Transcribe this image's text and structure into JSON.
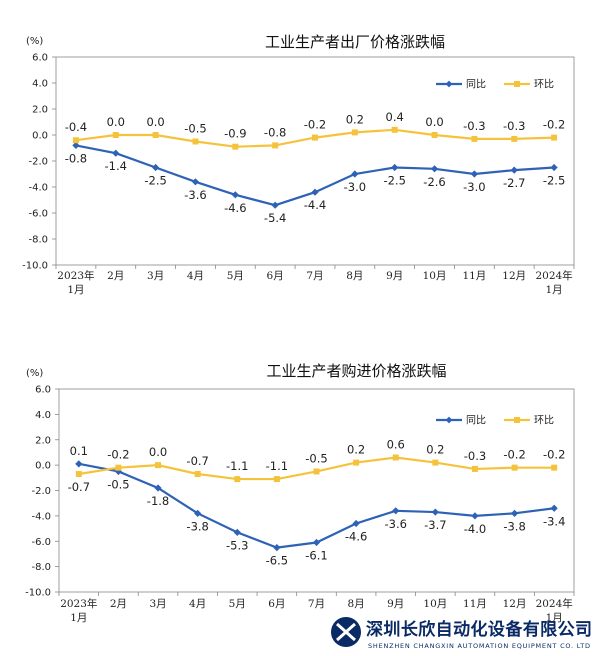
{
  "chart_data": [
    {
      "type": "line",
      "title": "工业生产者出厂价格涨跌幅",
      "unit_label": "(%)",
      "categories": [
        "2023年1月",
        "2月",
        "3月",
        "4月",
        "5月",
        "6月",
        "7月",
        "8月",
        "9月",
        "10月",
        "11月",
        "12月",
        "2024年1月"
      ],
      "category_lines": [
        [
          "2023年",
          "1月"
        ],
        [
          "2月"
        ],
        [
          "3月"
        ],
        [
          "4月"
        ],
        [
          "5月"
        ],
        [
          "6月"
        ],
        [
          "7月"
        ],
        [
          "8月"
        ],
        [
          "9月"
        ],
        [
          "10月"
        ],
        [
          "11月"
        ],
        [
          "12月"
        ],
        [
          "2024年",
          "1月"
        ]
      ],
      "series": [
        {
          "name": "同比",
          "color": "#2e62b6",
          "marker": "diamond",
          "values": [
            -0.8,
            -1.4,
            -2.5,
            -3.6,
            -4.6,
            -5.4,
            -4.4,
            -3.0,
            -2.5,
            -2.6,
            -3.0,
            -2.7,
            -2.5
          ]
        },
        {
          "name": "环比",
          "color": "#f5c33b",
          "marker": "square",
          "values": [
            -0.4,
            0.0,
            0.0,
            -0.5,
            -0.9,
            -0.8,
            -0.2,
            0.2,
            0.4,
            0.0,
            -0.3,
            -0.3,
            -0.2
          ]
        }
      ],
      "ylim": [
        -10.0,
        6.0
      ],
      "yticks": [
        "6.0",
        "4.0",
        "2.0",
        "0.0",
        "-2.0",
        "-4.0",
        "-6.0",
        "-8.0",
        "-10.0"
      ],
      "grid": false,
      "legend_position": "top-right",
      "label_precision": 1
    },
    {
      "type": "line",
      "title": "工业生产者购进价格涨跌幅",
      "unit_label": "(%)",
      "categories": [
        "2023年1月",
        "2月",
        "3月",
        "4月",
        "5月",
        "6月",
        "7月",
        "8月",
        "9月",
        "10月",
        "11月",
        "12月",
        "2024年1月"
      ],
      "category_lines": [
        [
          "2023年",
          "1月"
        ],
        [
          "2月"
        ],
        [
          "3月"
        ],
        [
          "4月"
        ],
        [
          "5月"
        ],
        [
          "6月"
        ],
        [
          "7月"
        ],
        [
          "8月"
        ],
        [
          "9月"
        ],
        [
          "10月"
        ],
        [
          "11月"
        ],
        [
          "12月"
        ],
        [
          "2024年",
          "1月"
        ]
      ],
      "series": [
        {
          "name": "同比",
          "color": "#2e62b6",
          "marker": "diamond",
          "values": [
            0.1,
            -0.5,
            -1.8,
            -3.8,
            -5.3,
            -6.5,
            -6.1,
            -4.6,
            -3.6,
            -3.7,
            -4.0,
            -3.8,
            -3.4
          ]
        },
        {
          "name": "环比",
          "color": "#f5c33b",
          "marker": "square",
          "values": [
            -0.7,
            -0.2,
            0.0,
            -0.7,
            -1.1,
            -1.1,
            -0.5,
            0.2,
            0.6,
            0.2,
            -0.3,
            -0.2,
            -0.2
          ]
        }
      ],
      "ylim": [
        -10.0,
        6.0
      ],
      "yticks": [
        "6.0",
        "4.0",
        "2.0",
        "0.0",
        "-2.0",
        "-4.0",
        "-6.0",
        "-8.0",
        "-10.0"
      ],
      "grid": false,
      "legend_position": "top-right",
      "label_precision": 1
    }
  ],
  "watermark": {
    "name_cn": "深圳长欣自动化设备有限公司",
    "name_en": "SHENZHEN CHANGXIN AUTOMATION EQUIPMENT CO. LTD",
    "logo_color": "#0a2a66"
  }
}
